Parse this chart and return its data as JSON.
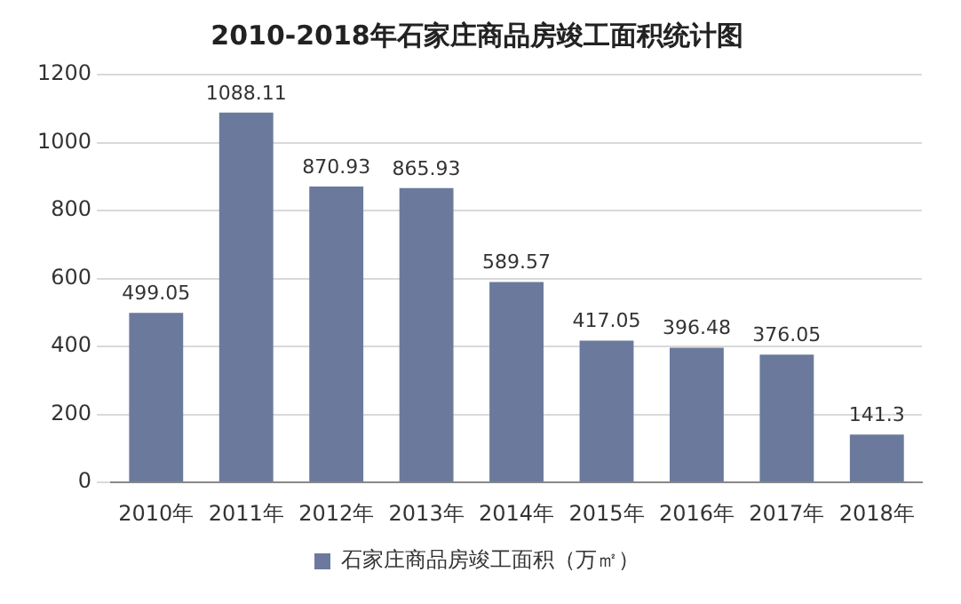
{
  "chart_data": {
    "type": "bar",
    "title": "2010-2018年石家庄商品房竣工面积统计图",
    "categories": [
      "2010年",
      "2011年",
      "2012年",
      "2013年",
      "2014年",
      "2015年",
      "2016年",
      "2017年",
      "2018年"
    ],
    "series": [
      {
        "name": "石家庄商品房竣工面积（万㎡）",
        "color": "#6b7a9c",
        "values": [
          499.05,
          1088.11,
          870.93,
          865.93,
          589.57,
          417.05,
          396.48,
          376.05,
          141.3
        ]
      }
    ],
    "ylim": [
      0,
      1200
    ],
    "yticks": [
      0,
      200,
      400,
      600,
      800,
      1000,
      1200
    ],
    "grid": "y",
    "legend": "bottom",
    "data_labels": true
  }
}
